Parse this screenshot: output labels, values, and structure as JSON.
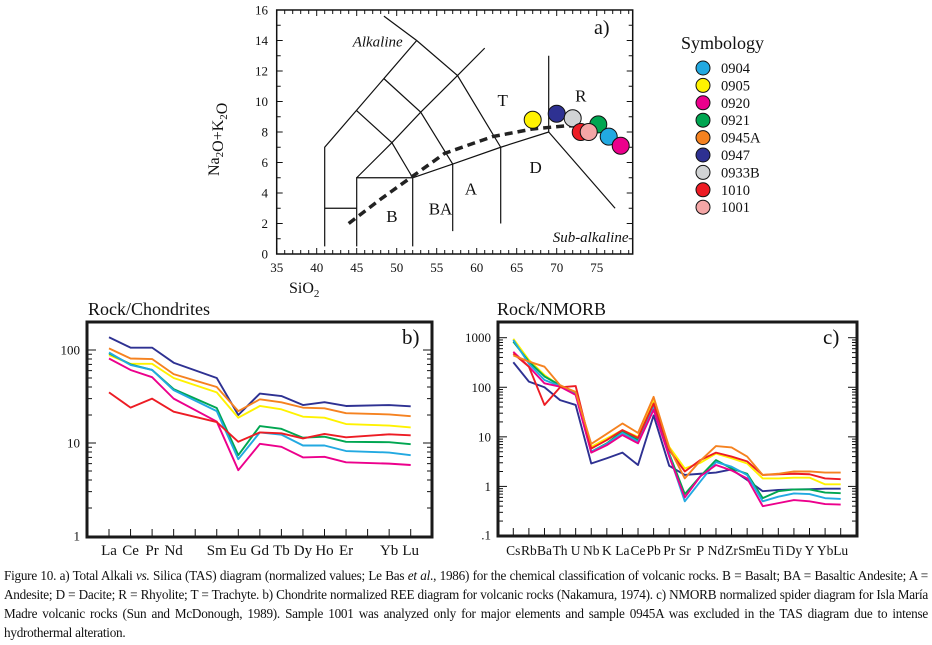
{
  "legend": {
    "title": "Symbology",
    "items": [
      {
        "label": "0904",
        "color": "#22a9e1"
      },
      {
        "label": "0905",
        "color": "#fff200"
      },
      {
        "label": "0920",
        "color": "#ec008c"
      },
      {
        "label": "0921",
        "color": "#00a651"
      },
      {
        "label": "0945A",
        "color": "#f58220"
      },
      {
        "label": "0947",
        "color": "#2e3192"
      },
      {
        "label": "0933B",
        "color": "#d1d3d4"
      },
      {
        "label": "1010",
        "color": "#ed1c24"
      },
      {
        "label": "1001",
        "color": "#f4a6a6"
      }
    ]
  },
  "caption": [
    {
      "text": "Figure 10. a) Total Alkali ",
      "italic": false
    },
    {
      "text": "vs.",
      "italic": true
    },
    {
      "text": " Silica (TAS) diagram (normalized values; Le Bas ",
      "italic": false
    },
    {
      "text": "et al",
      "italic": true
    },
    {
      "text": "., 1986) for the chemical classification of volcanic rocks. B = Basalt; BA = Basaltic Andesite; A = Andesite; D = Dacite; R = Rhyolite; T = Trachyte. b) Chondrite normalized REE diagram for volcanic rocks (Nakamura, 1974). c) NMORB normalized spider diagram for Isla María Madre volcanic rocks (Sun and McDonough, 1989). Sample 1001 was analyzed only for major elements and sample 0945A was excluded in the TAS diagram due to intense hydrothermal alteration.",
      "italic": false
    }
  ],
  "chart_data": [
    {
      "type": "scatter",
      "panel_label": "a)",
      "xlabel": "SiO2",
      "ylabel": "Na2O+K2O",
      "xlim": [
        35,
        79.5
      ],
      "ylim": [
        0,
        16
      ],
      "xticks": [
        "35",
        "40",
        "45",
        "50",
        "55",
        "60",
        "65",
        "70",
        "75"
      ],
      "yticks": [
        "0",
        "2",
        "4",
        "6",
        "8",
        "10",
        "12",
        "14",
        "16"
      ],
      "field_labels": [
        "Alkaline",
        "T",
        "R",
        "D",
        "A",
        "BA",
        "B",
        "Sub-alkaline"
      ],
      "field_boundaries": [
        [
          [
            41,
            0.5
          ],
          [
            41,
            7
          ],
          [
            52.5,
            14
          ]
        ],
        [
          [
            48.4,
            15.6
          ],
          [
            52.5,
            14
          ],
          [
            57.6,
            11.7
          ],
          [
            63,
            7
          ]
        ],
        [
          [
            45,
            5
          ],
          [
            49.4,
            7.3
          ],
          [
            53,
            9.3
          ],
          [
            57.6,
            11.7
          ],
          [
            61,
            13.5
          ]
        ],
        [
          [
            45,
            9.4
          ],
          [
            49.4,
            7.3
          ],
          [
            52,
            5
          ]
        ],
        [
          [
            48.4,
            11.5
          ],
          [
            53,
            9.3
          ],
          [
            57,
            5.9
          ]
        ],
        [
          [
            41,
            3
          ],
          [
            45,
            3
          ]
        ],
        [
          [
            45,
            0.5
          ],
          [
            45,
            5
          ],
          [
            52,
            5
          ]
        ],
        [
          [
            52,
            0.5
          ],
          [
            52,
            5
          ],
          [
            57,
            5.9
          ],
          [
            63,
            7
          ],
          [
            69,
            8
          ],
          [
            69,
            13
          ]
        ],
        [
          [
            57,
            1.5
          ],
          [
            57,
            5.9
          ]
        ],
        [
          [
            63,
            2
          ],
          [
            63,
            7
          ]
        ],
        [
          [
            69,
            8
          ],
          [
            77.3,
            3
          ]
        ]
      ],
      "alkaline_subalkaline_divide": [
        [
          44,
          2
        ],
        [
          48,
          3.6
        ],
        [
          52,
          5.1
        ],
        [
          56,
          6.6
        ],
        [
          62,
          7.7
        ],
        [
          67,
          8.2
        ],
        [
          71,
          8.4
        ],
        [
          73.5,
          8.4
        ]
      ],
      "points": [
        {
          "sample": "0905",
          "x": 67.0,
          "y": 8.8
        },
        {
          "sample": "0947",
          "x": 70.0,
          "y": 9.2
        },
        {
          "sample": "0933B",
          "x": 72.0,
          "y": 8.9
        },
        {
          "sample": "0921",
          "x": 75.2,
          "y": 8.5
        },
        {
          "sample": "1010",
          "x": 73.0,
          "y": 8.0
        },
        {
          "sample": "1001",
          "x": 74.0,
          "y": 8.0
        },
        {
          "sample": "0904",
          "x": 76.5,
          "y": 7.7
        },
        {
          "sample": "0920",
          "x": 78.0,
          "y": 7.1
        }
      ]
    },
    {
      "type": "line",
      "title": "Rock/Chondrites",
      "panel_label": "b)",
      "yscale": "log",
      "ylim": [
        1,
        200
      ],
      "yticks": [
        "1",
        "10",
        "100"
      ],
      "categories": [
        "La",
        "Ce",
        "Pr",
        "Nd",
        "",
        "Sm",
        "Eu",
        "Gd",
        "Tb",
        "Dy",
        "Ho",
        "Er",
        "",
        "Yb",
        "Lu"
      ],
      "series": [
        {
          "sample": "0947",
          "values": [
            137,
            106,
            106,
            73,
            null,
            50,
            20,
            34,
            32,
            25.6,
            27.5,
            25,
            null,
            25.6,
            24.8
          ]
        },
        {
          "sample": "0945A",
          "values": [
            104,
            81,
            80,
            55,
            null,
            40,
            22,
            29.5,
            27.4,
            24,
            23.6,
            20.9,
            null,
            20.3,
            19.4
          ]
        },
        {
          "sample": "0905",
          "values": [
            88,
            71,
            71,
            50,
            null,
            35,
            18.7,
            25,
            23,
            19.2,
            18.7,
            16,
            null,
            15.4,
            14.7
          ]
        },
        {
          "sample": "0921",
          "values": [
            92,
            70,
            61,
            38,
            null,
            23.8,
            7.4,
            15.2,
            14.2,
            11.4,
            11.7,
            10.3,
            null,
            10.2,
            9.7
          ]
        },
        {
          "sample": "0904",
          "values": [
            94,
            69,
            61,
            37,
            null,
            22,
            6.7,
            13,
            12.3,
            9.4,
            9.4,
            8.2,
            null,
            7.9,
            7.4
          ]
        },
        {
          "sample": "0920",
          "values": [
            81,
            61,
            51,
            30,
            null,
            17,
            5.1,
            9.8,
            9.1,
            7.0,
            7.1,
            6.2,
            null,
            6.0,
            5.8
          ]
        },
        {
          "sample": "1010",
          "values": [
            35,
            24,
            30,
            21.7,
            null,
            16.8,
            10.3,
            13,
            12.7,
            11.2,
            12.5,
            11.5,
            null,
            12.4,
            12.1
          ]
        }
      ]
    },
    {
      "type": "line",
      "title": "Rock/NMORB",
      "panel_label": "c)",
      "yscale": "log",
      "ylim": [
        0.1,
        2000
      ],
      "yticks": [
        ".1",
        "1",
        "10",
        "100",
        "1000"
      ],
      "categories": [
        "Cs",
        "Rb",
        "Ba",
        "Th",
        "U",
        "Nb",
        "K",
        "La",
        "Ce",
        "Pb",
        "Pr",
        "Sr",
        "P",
        "Nd",
        "Zr",
        "Sm",
        "Eu",
        "Ti",
        "Dy",
        "Y",
        "Yb",
        "Lu"
      ],
      "series": [
        {
          "sample": "0947",
          "values": [
            320,
            130,
            100,
            55,
            44,
            2.9,
            3.7,
            4.8,
            2.7,
            27,
            2.6,
            1.7,
            1.8,
            1.9,
            2.2,
            1.35,
            0.8,
            0.85,
            0.87,
            0.88,
            0.9,
            0.9
          ]
        },
        {
          "sample": "0905",
          "values": [
            950,
            355,
            177,
            106,
            81,
            6.3,
            9.3,
            13.7,
            10,
            55,
            6.3,
            2.3,
            3,
            4.6,
            3.7,
            2.9,
            1.45,
            1.45,
            1.5,
            1.5,
            1.1,
            1.1
          ]
        },
        {
          "sample": "0921",
          "values": [
            830,
            330,
            165,
            110,
            75,
            5,
            7.4,
            13,
            8.6,
            45,
            4.6,
            0.7,
            1.6,
            3.4,
            2.3,
            1.8,
            0.58,
            0.8,
            0.87,
            0.87,
            0.75,
            0.73
          ]
        },
        {
          "sample": "0904",
          "values": [
            900,
            300,
            140,
            106,
            72,
            5,
            7.2,
            12,
            8,
            42,
            4.3,
            0.5,
            1.26,
            3.1,
            2.5,
            1.7,
            0.5,
            0.62,
            0.72,
            0.7,
            0.58,
            0.56
          ]
        },
        {
          "sample": "0920",
          "values": [
            520,
            260,
            120,
            103,
            70,
            4.8,
            6.8,
            10.9,
            7.4,
            35,
            4,
            0.6,
            1.6,
            2.7,
            2.1,
            1.45,
            0.4,
            0.46,
            0.53,
            0.5,
            0.44,
            0.43
          ]
        },
        {
          "sample": "1010",
          "values": [
            480,
            260,
            44,
            100,
            106,
            5.8,
            8.6,
            13.7,
            9.5,
            47,
            5.4,
            2,
            3.4,
            4.8,
            4,
            3.2,
            1.7,
            1.76,
            1.8,
            1.76,
            1.45,
            1.4
          ]
        },
        {
          "sample": "0945A",
          "values": [
            440,
            330,
            260,
            110,
            80,
            7.2,
            11.5,
            18.6,
            12,
            64,
            6,
            1.45,
            3.3,
            6.5,
            6.1,
            4,
            1.7,
            1.8,
            2,
            2,
            1.9,
            1.9
          ]
        }
      ]
    }
  ]
}
